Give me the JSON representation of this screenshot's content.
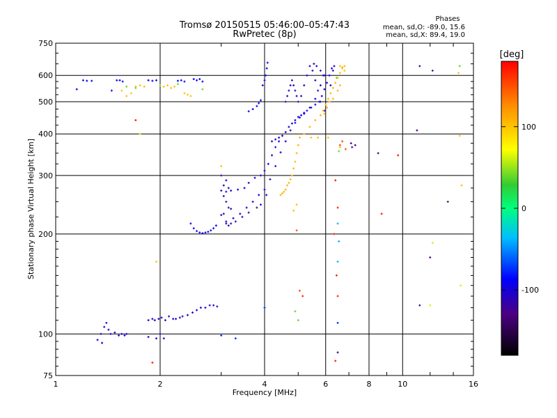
{
  "chart_data": {
    "type": "scatter",
    "title": "Tromsø 20150515 05:46:00–05:47:43",
    "subtitle": "RwPretec (8p)",
    "xlabel": "Frequency [MHz]",
    "ylabel": "Stationary phase Virtual Height [km]",
    "x_scale": "log",
    "y_scale": "log",
    "xlim": [
      1,
      16
    ],
    "ylim": [
      75,
      750
    ],
    "x_ticks": [
      "1",
      "2",
      "4",
      "6",
      "8",
      "10",
      "16"
    ],
    "y_ticks": [
      "750",
      "600",
      "500",
      "400",
      "300",
      "200",
      "100",
      "75"
    ],
    "grid": true,
    "phases_box": {
      "title": "Phases",
      "line_o": "mean, sd,O: -89.0, 15.6",
      "line_x": "mean, sd,X:  89.4, 19.0"
    },
    "colorbar": {
      "label": "[deg]",
      "range": [
        -180,
        180
      ],
      "ticks": [
        "100",
        "0",
        "-100"
      ]
    },
    "series": [
      {
        "phase": -95,
        "points": [
          [
            1.15,
            545
          ],
          [
            1.2,
            580
          ],
          [
            1.23,
            578
          ],
          [
            1.27,
            578
          ],
          [
            1.45,
            540
          ],
          [
            1.5,
            580
          ],
          [
            1.53,
            580
          ],
          [
            1.56,
            575
          ],
          [
            1.85,
            580
          ],
          [
            1.9,
            578
          ],
          [
            1.95,
            580
          ],
          [
            2.25,
            578
          ],
          [
            2.3,
            580
          ],
          [
            2.35,
            575
          ],
          [
            2.5,
            585
          ],
          [
            2.55,
            580
          ],
          [
            2.6,
            585
          ],
          [
            2.65,
            575
          ]
        ]
      },
      {
        "phase": -105,
        "points": [
          [
            1.35,
            100
          ],
          [
            1.38,
            105
          ],
          [
            1.4,
            108
          ],
          [
            1.42,
            103
          ],
          [
            1.44,
            100
          ],
          [
            1.48,
            101
          ],
          [
            1.52,
            99
          ],
          [
            1.55,
            100
          ],
          [
            1.58,
            99
          ],
          [
            1.6,
            100
          ],
          [
            1.32,
            96
          ],
          [
            1.36,
            94
          ],
          [
            1.85,
            98
          ],
          [
            1.95,
            97
          ],
          [
            2.0,
            100
          ],
          [
            2.05,
            97
          ],
          [
            1.93,
            110
          ],
          [
            1.98,
            111
          ],
          [
            2.02,
            112
          ],
          [
            2.07,
            110
          ],
          [
            2.12,
            113
          ],
          [
            2.18,
            111
          ],
          [
            2.22,
            111
          ],
          [
            2.28,
            112
          ],
          [
            2.32,
            113
          ],
          [
            2.4,
            114
          ],
          [
            2.48,
            116
          ],
          [
            2.55,
            118
          ],
          [
            2.62,
            120
          ],
          [
            2.7,
            120
          ],
          [
            2.78,
            122
          ],
          [
            2.85,
            122
          ],
          [
            2.92,
            121
          ],
          [
            1.85,
            110
          ],
          [
            1.9,
            111
          ]
        ]
      },
      {
        "phase": -100,
        "points": [
          [
            3.1,
            268
          ],
          [
            3.2,
            270
          ],
          [
            3.35,
            272
          ],
          [
            3.5,
            275
          ],
          [
            3.6,
            285
          ],
          [
            3.75,
            295
          ],
          [
            3.9,
            300
          ],
          [
            4.0,
            310
          ],
          [
            4.1,
            325
          ],
          [
            4.2,
            345
          ],
          [
            4.3,
            365
          ],
          [
            4.4,
            380
          ],
          [
            4.5,
            395
          ],
          [
            4.6,
            405
          ],
          [
            4.7,
            420
          ],
          [
            4.8,
            430
          ],
          [
            4.9,
            440
          ],
          [
            5.0,
            450
          ],
          [
            5.1,
            455
          ],
          [
            5.2,
            460
          ],
          [
            5.3,
            470
          ],
          [
            5.45,
            480
          ],
          [
            5.6,
            490
          ],
          [
            5.75,
            500
          ],
          [
            5.85,
            520
          ],
          [
            5.95,
            545
          ],
          [
            6.05,
            570
          ],
          [
            6.15,
            600
          ],
          [
            6.25,
            630
          ],
          [
            3.0,
            228
          ],
          [
            3.1,
            218
          ],
          [
            3.25,
            223
          ],
          [
            3.4,
            230
          ],
          [
            3.55,
            240
          ],
          [
            3.7,
            250
          ],
          [
            3.85,
            262
          ],
          [
            4.0,
            272
          ],
          [
            4.15,
            292
          ],
          [
            4.3,
            320
          ],
          [
            4.45,
            352
          ],
          [
            4.6,
            380
          ],
          [
            4.75,
            410
          ],
          [
            4.9,
            432
          ],
          [
            5.05,
            448
          ],
          [
            5.2,
            463
          ],
          [
            5.4,
            480
          ],
          [
            5.6,
            510
          ],
          [
            5.8,
            560
          ],
          [
            5.95,
            600
          ]
        ]
      },
      {
        "phase": -115,
        "points": [
          [
            3.0,
            270
          ],
          [
            3.05,
            260
          ],
          [
            3.1,
            250
          ],
          [
            3.15,
            240
          ],
          [
            3.2,
            238
          ],
          [
            3.0,
            300
          ],
          [
            3.05,
            280
          ],
          [
            3.1,
            290
          ],
          [
            3.15,
            275
          ],
          [
            3.05,
            230
          ],
          [
            3.1,
            215
          ],
          [
            3.15,
            212
          ],
          [
            3.2,
            215
          ],
          [
            3.3,
            218
          ],
          [
            3.45,
            225
          ],
          [
            3.6,
            232
          ],
          [
            3.8,
            240
          ],
          [
            3.9,
            245
          ],
          [
            4.05,
            262
          ]
        ]
      },
      {
        "phase": -95,
        "points": [
          [
            2.45,
            215
          ],
          [
            2.5,
            208
          ],
          [
            2.55,
            204
          ],
          [
            2.6,
            202
          ],
          [
            2.65,
            201
          ],
          [
            2.7,
            202
          ],
          [
            2.75,
            203
          ],
          [
            2.8,
            205
          ],
          [
            2.85,
            208
          ],
          [
            2.9,
            212
          ],
          [
            3.6,
            468
          ],
          [
            3.7,
            475
          ],
          [
            3.8,
            485
          ],
          [
            3.85,
            495
          ],
          [
            3.9,
            505
          ],
          [
            3.95,
            560
          ],
          [
            4.0,
            580
          ],
          [
            4.03,
            600
          ],
          [
            4.06,
            630
          ],
          [
            4.08,
            655
          ]
        ]
      },
      {
        "phase": -110,
        "points": [
          [
            4.2,
            380
          ],
          [
            4.3,
            385
          ],
          [
            4.4,
            390
          ],
          [
            4.5,
            395
          ],
          [
            4.6,
            500
          ],
          [
            4.65,
            520
          ],
          [
            4.7,
            540
          ],
          [
            4.75,
            560
          ],
          [
            4.8,
            580
          ],
          [
            4.85,
            560
          ],
          [
            4.9,
            540
          ],
          [
            4.95,
            520
          ],
          [
            5.0,
            500
          ],
          [
            5.1,
            520
          ],
          [
            5.2,
            560
          ],
          [
            5.3,
            600
          ],
          [
            5.4,
            640
          ],
          [
            5.5,
            620
          ],
          [
            5.6,
            580
          ],
          [
            5.7,
            540
          ],
          [
            5.8,
            500
          ],
          [
            5.95,
            470
          ],
          [
            6.05,
            480
          ],
          [
            6.2,
            560
          ],
          [
            6.3,
            620
          ],
          [
            6.35,
            640
          ],
          [
            5.55,
            650
          ],
          [
            5.65,
            640
          ],
          [
            5.8,
            620
          ],
          [
            5.9,
            600
          ]
        ]
      },
      {
        "phase": 105,
        "points": [
          [
            4.45,
            262
          ],
          [
            4.5,
            265
          ],
          [
            4.55,
            268
          ],
          [
            4.6,
            272
          ],
          [
            4.65,
            280
          ],
          [
            4.7,
            285
          ],
          [
            4.75,
            292
          ],
          [
            4.8,
            300
          ],
          [
            4.85,
            315
          ],
          [
            4.9,
            330
          ],
          [
            4.95,
            350
          ],
          [
            5.0,
            370
          ],
          [
            5.05,
            390
          ],
          [
            5.2,
            400
          ],
          [
            5.4,
            420
          ],
          [
            5.6,
            440
          ],
          [
            5.8,
            455
          ],
          [
            5.9,
            470
          ],
          [
            6.0,
            490
          ],
          [
            6.1,
            510
          ],
          [
            6.2,
            530
          ],
          [
            6.3,
            550
          ],
          [
            6.4,
            570
          ],
          [
            6.5,
            590
          ],
          [
            6.6,
            610
          ],
          [
            6.7,
            635
          ],
          [
            6.8,
            640
          ],
          [
            6.3,
            510
          ],
          [
            6.5,
            540
          ],
          [
            6.6,
            560
          ],
          [
            5.95,
            460
          ],
          [
            6.05,
            480
          ],
          [
            6.15,
            500
          ]
        ]
      },
      {
        "phase": 100,
        "points": [
          [
            1.55,
            540
          ],
          [
            1.6,
            520
          ],
          [
            1.65,
            530
          ],
          [
            1.7,
            555
          ],
          [
            1.75,
            560
          ],
          [
            1.8,
            555
          ],
          [
            2.05,
            555
          ],
          [
            2.1,
            560
          ],
          [
            2.15,
            550
          ],
          [
            2.2,
            555
          ],
          [
            2.35,
            530
          ],
          [
            2.4,
            525
          ],
          [
            2.45,
            520
          ],
          [
            3.0,
            320
          ],
          [
            4.85,
            235
          ],
          [
            4.95,
            245
          ],
          [
            5.45,
            390
          ],
          [
            5.7,
            390
          ],
          [
            6.1,
            390
          ],
          [
            6.6,
            640
          ],
          [
            6.7,
            630
          ],
          [
            6.8,
            620
          ],
          [
            6.6,
            365
          ],
          [
            14.5,
            610
          ],
          [
            14.6,
            395
          ],
          [
            14.8,
            280
          ],
          [
            1.95,
            165
          ]
        ]
      },
      {
        "phase": 40,
        "points": [
          [
            1.6,
            555
          ],
          [
            1.7,
            550
          ],
          [
            2.0,
            560
          ],
          [
            2.25,
            565
          ],
          [
            2.65,
            545
          ],
          [
            4.9,
            117
          ],
          [
            5.0,
            110
          ],
          [
            6.55,
            355
          ],
          [
            6.45,
            590
          ],
          [
            14.6,
            640
          ]
        ]
      },
      {
        "phase": 170,
        "points": [
          [
            1.7,
            440
          ],
          [
            1.9,
            82
          ],
          [
            6.4,
            290
          ],
          [
            6.5,
            240
          ],
          [
            6.35,
            200
          ],
          [
            6.45,
            150
          ],
          [
            6.5,
            130
          ],
          [
            6.4,
            83
          ],
          [
            8.7,
            230
          ],
          [
            9.7,
            345
          ],
          [
            5.15,
            130
          ]
        ]
      },
      {
        "phase": 150,
        "points": [
          [
            6.6,
            370
          ],
          [
            6.7,
            380
          ],
          [
            6.85,
            360
          ],
          [
            4.95,
            205
          ],
          [
            5.05,
            135
          ]
        ]
      },
      {
        "phase": -130,
        "points": [
          [
            7.1,
            375
          ],
          [
            7.15,
            365
          ],
          [
            7.3,
            370
          ],
          [
            8.5,
            350
          ],
          [
            11.0,
            410
          ],
          [
            12.0,
            170
          ],
          [
            13.5,
            250
          ]
        ]
      },
      {
        "phase": -45,
        "points": [
          [
            6.5,
            215
          ],
          [
            6.55,
            190
          ],
          [
            6.5,
            165
          ]
        ]
      },
      {
        "phase": -80,
        "points": [
          [
            4.0,
            120
          ],
          [
            6.5,
            108
          ],
          [
            3.3,
            97
          ],
          [
            3.0,
            99
          ]
        ]
      },
      {
        "phase": -120,
        "points": [
          [
            6.5,
            88
          ],
          [
            11.2,
            640
          ],
          [
            12.2,
            620
          ],
          [
            11.2,
            122
          ]
        ]
      },
      {
        "phase": 60,
        "points": [
          [
            1.75,
            400
          ],
          [
            14.7,
            140
          ],
          [
            12.0,
            122
          ],
          [
            12.2,
            188
          ]
        ]
      }
    ]
  }
}
